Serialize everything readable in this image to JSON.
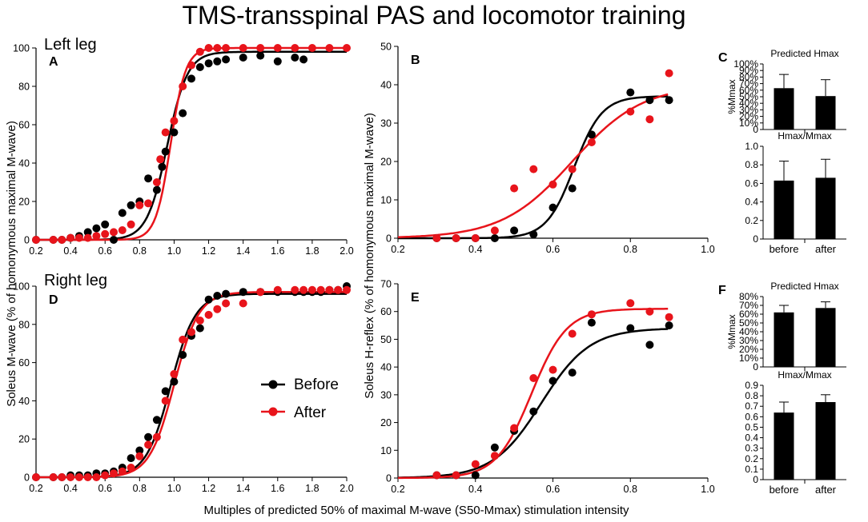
{
  "title": "TMS-transspinal PAS and locomotor training",
  "xlabel_common": "Multiples of predicted 50% of maximal M-wave (S50-Mmax) stimulation intensity",
  "ylabel_m": "Soleus M-wave (% of homonymous maximal M-wave)",
  "ylabel_h": "Soleus H-reflex (% of homonymous maximal M-wave)",
  "row_labels": {
    "left": "Left leg",
    "right": "Right leg"
  },
  "legend": {
    "before": "Before",
    "after": "After"
  },
  "colors": {
    "before": "#000000",
    "after": "#e8141b"
  },
  "chart_data": [
    {
      "id": "A",
      "panel_label": "A",
      "type": "scatter",
      "xlim": [
        0.2,
        2.0
      ],
      "ylim": [
        0,
        100
      ],
      "xticks": [
        "0.2",
        "0.4",
        "0.6",
        "0.8",
        "1.0",
        "1.2",
        "1.4",
        "1.6",
        "1.8",
        "2.0"
      ],
      "yticks": [
        "0",
        "20",
        "40",
        "60",
        "80",
        "100"
      ],
      "fits": [
        {
          "series": "before",
          "max": 98,
          "x50": 0.96,
          "slope": 17
        },
        {
          "series": "after",
          "max": 100,
          "x50": 0.98,
          "slope": 23
        }
      ],
      "series": [
        {
          "name": "before",
          "x": [
            0.2,
            0.3,
            0.35,
            0.4,
            0.45,
            0.5,
            0.55,
            0.6,
            0.65,
            0.7,
            0.75,
            0.8,
            0.85,
            0.9,
            0.93,
            0.95,
            1.0,
            1.05,
            1.1,
            1.15,
            1.2,
            1.25,
            1.3,
            1.4,
            1.5,
            1.6,
            1.7,
            1.75
          ],
          "y": [
            0,
            0,
            0,
            1,
            2,
            4,
            6,
            8,
            0,
            14,
            18,
            20,
            32,
            26,
            38,
            46,
            56,
            66,
            84,
            90,
            92,
            93,
            94,
            95,
            96,
            93,
            95,
            94
          ]
        },
        {
          "name": "after",
          "x": [
            0.2,
            0.3,
            0.35,
            0.4,
            0.45,
            0.5,
            0.55,
            0.6,
            0.65,
            0.7,
            0.75,
            0.8,
            0.85,
            0.9,
            0.92,
            0.95,
            1.0,
            1.05,
            1.1,
            1.15,
            1.2,
            1.25,
            1.3,
            1.4,
            1.5,
            1.6,
            1.7,
            1.8,
            1.9,
            2.0
          ],
          "y": [
            0,
            0,
            0,
            1,
            1,
            1,
            2,
            3,
            4,
            5,
            8,
            18,
            19,
            30,
            42,
            56,
            62,
            80,
            91,
            98,
            100,
            100,
            100,
            100,
            100,
            100,
            100,
            100,
            100,
            100
          ]
        }
      ]
    },
    {
      "id": "B",
      "panel_label": "B",
      "type": "scatter",
      "xlim": [
        0.2,
        1.0
      ],
      "ylim": [
        0,
        50
      ],
      "xticks": [
        "0.2",
        "0.4",
        "0.6",
        "0.8",
        "1.0"
      ],
      "yticks": [
        "0",
        "10",
        "20",
        "30",
        "40",
        "50"
      ],
      "fits": [
        {
          "series": "before",
          "max": 37,
          "x50": 0.655,
          "slope": 28
        },
        {
          "series": "after",
          "max": 40,
          "x50": 0.65,
          "slope": 11
        }
      ],
      "series": [
        {
          "name": "before",
          "x": [
            0.3,
            0.35,
            0.4,
            0.45,
            0.5,
            0.55,
            0.6,
            0.65,
            0.7,
            0.8,
            0.85,
            0.9
          ],
          "y": [
            0,
            0,
            0,
            0,
            2,
            1,
            8,
            13,
            27,
            38,
            36,
            36
          ]
        },
        {
          "name": "after",
          "x": [
            0.3,
            0.35,
            0.4,
            0.45,
            0.5,
            0.55,
            0.6,
            0.65,
            0.7,
            0.8,
            0.85,
            0.9
          ],
          "y": [
            0,
            0,
            0,
            2,
            13,
            18,
            14,
            18,
            25,
            33,
            31,
            43
          ]
        }
      ]
    },
    {
      "id": "C_top",
      "panel_label": "C",
      "type": "bar",
      "title": "Predicted Hmax",
      "ylabel": "%Mmax",
      "ylim": [
        0,
        100
      ],
      "yticks": [
        "0",
        "10",
        "20",
        "30",
        "40",
        "50",
        "60",
        "70",
        "80",
        "90",
        "100"
      ],
      "ytick_suffix": "%",
      "categories": [
        "before",
        "after"
      ],
      "values": [
        63,
        51
      ],
      "errors": [
        21,
        25
      ],
      "show_xlabels": false
    },
    {
      "id": "C_bottom",
      "type": "bar",
      "title": "Hmax/Mmax",
      "ylim": [
        0,
        1.0
      ],
      "yticks": [
        "0",
        "0.2",
        "0.4",
        "0.6",
        "0.8",
        "1.0"
      ],
      "categories": [
        "before",
        "after"
      ],
      "values": [
        0.63,
        0.66
      ],
      "errors": [
        0.21,
        0.2
      ],
      "show_xlabels": true
    },
    {
      "id": "D",
      "panel_label": "D",
      "type": "scatter",
      "xlim": [
        0.2,
        2.0
      ],
      "ylim": [
        0,
        100
      ],
      "xticks": [
        "0.2",
        "0.4",
        "0.6",
        "0.8",
        "1.0",
        "1.2",
        "1.4",
        "1.6",
        "1.8",
        "2.0"
      ],
      "yticks": [
        "0",
        "20",
        "40",
        "60",
        "80",
        "100"
      ],
      "fits": [
        {
          "series": "before",
          "max": 96,
          "x50": 0.98,
          "slope": 14
        },
        {
          "series": "after",
          "max": 97,
          "x50": 1.0,
          "slope": 14
        }
      ],
      "series": [
        {
          "name": "before",
          "x": [
            0.2,
            0.3,
            0.35,
            0.4,
            0.45,
            0.5,
            0.55,
            0.6,
            0.65,
            0.7,
            0.75,
            0.8,
            0.85,
            0.9,
            0.95,
            1.0,
            1.05,
            1.1,
            1.15,
            1.2,
            1.25,
            1.3,
            1.4,
            1.5,
            1.6,
            1.7,
            1.75,
            1.8,
            1.85,
            1.9,
            1.95,
            2.0
          ],
          "y": [
            0,
            0,
            0,
            1,
            1,
            1,
            2,
            2,
            3,
            5,
            10,
            14,
            21,
            30,
            45,
            50,
            64,
            74,
            78,
            93,
            95,
            96,
            97,
            97,
            97,
            97,
            97,
            97,
            97,
            98,
            98,
            100
          ]
        },
        {
          "name": "after",
          "x": [
            0.2,
            0.3,
            0.35,
            0.4,
            0.45,
            0.5,
            0.55,
            0.6,
            0.65,
            0.7,
            0.75,
            0.8,
            0.85,
            0.9,
            0.95,
            1.0,
            1.05,
            1.1,
            1.15,
            1.2,
            1.25,
            1.3,
            1.4,
            1.5,
            1.6,
            1.7,
            1.75,
            1.8,
            1.85,
            1.9,
            1.95,
            2.0
          ],
          "y": [
            0,
            0,
            0,
            0,
            0,
            0,
            0,
            1,
            2,
            3,
            5,
            11,
            17,
            21,
            40,
            54,
            72,
            76,
            82,
            85,
            88,
            91,
            91,
            97,
            98,
            98,
            98,
            98,
            98,
            98,
            98,
            98
          ]
        }
      ]
    },
    {
      "id": "E",
      "panel_label": "E",
      "type": "scatter",
      "xlim": [
        0.2,
        1.0
      ],
      "ylim": [
        0,
        70
      ],
      "xticks": [
        "0.2",
        "0.4",
        "0.6",
        "0.8",
        "1.0"
      ],
      "yticks": [
        "0",
        "10",
        "20",
        "30",
        "40",
        "50",
        "60",
        "70"
      ],
      "fits": [
        {
          "series": "before",
          "max": 54,
          "x50": 0.57,
          "slope": 16
        },
        {
          "series": "after",
          "max": 61,
          "x50": 0.545,
          "slope": 22
        }
      ],
      "series": [
        {
          "name": "before",
          "x": [
            0.3,
            0.35,
            0.4,
            0.45,
            0.5,
            0.55,
            0.6,
            0.65,
            0.7,
            0.8,
            0.85,
            0.9
          ],
          "y": [
            1,
            1,
            1,
            11,
            17,
            24,
            35,
            38,
            56,
            54,
            48,
            55
          ]
        },
        {
          "name": "after",
          "x": [
            0.3,
            0.35,
            0.4,
            0.45,
            0.5,
            0.55,
            0.6,
            0.65,
            0.7,
            0.8,
            0.85,
            0.9
          ],
          "y": [
            1,
            1,
            5,
            8,
            18,
            36,
            39,
            52,
            59,
            63,
            60,
            58
          ]
        }
      ]
    },
    {
      "id": "F_top",
      "panel_label": "F",
      "type": "bar",
      "title": "Predicted Hmax",
      "ylabel": "%Mmax",
      "ylim": [
        0,
        80
      ],
      "yticks": [
        "0",
        "10",
        "20",
        "30",
        "40",
        "50",
        "60",
        "70",
        "80"
      ],
      "ytick_suffix": "%",
      "categories": [
        "before",
        "after"
      ],
      "values": [
        62,
        67
      ],
      "errors": [
        8,
        7
      ],
      "show_xlabels": false
    },
    {
      "id": "F_bottom",
      "type": "bar",
      "title": "Hmax/Mmax",
      "ylim": [
        0,
        0.9
      ],
      "yticks": [
        "0",
        "0.1",
        "0.2",
        "0.3",
        "0.4",
        "0.5",
        "0.6",
        "0.7",
        "0.8",
        "0.9"
      ],
      "categories": [
        "before",
        "after"
      ],
      "values": [
        0.64,
        0.74
      ],
      "errors": [
        0.1,
        0.07
      ],
      "show_xlabels": true
    }
  ]
}
